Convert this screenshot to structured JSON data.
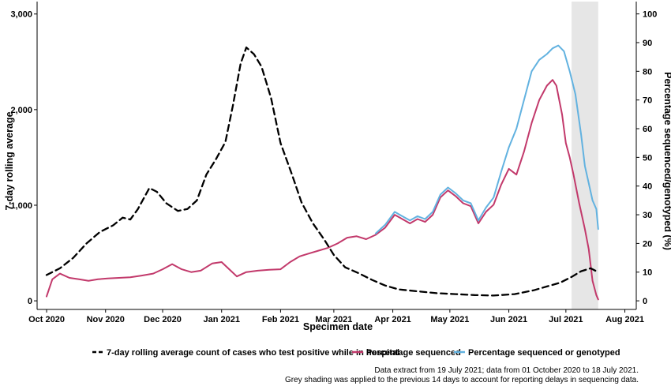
{
  "chart_data": {
    "type": "line",
    "xlabel": "Specimen date",
    "ylabel_left": "7-day rolling average",
    "ylabel_right": "Percentage sequenced/genotyped (%)",
    "x_ticks": [
      "Oct 2020",
      "Nov 2020",
      "Dec 2020",
      "Jan 2021",
      "Feb 2021",
      "Mar 2021",
      "Apr 2021",
      "May 2021",
      "Jun 2021",
      "Jul 2021",
      "Aug 2021"
    ],
    "x_tick_dates": [
      "2020-10-01",
      "2020-11-01",
      "2020-12-01",
      "2021-01-01",
      "2021-02-01",
      "2021-03-01",
      "2021-04-01",
      "2021-05-01",
      "2021-06-01",
      "2021-07-01",
      "2021-08-01"
    ],
    "xlim": [
      "2020-09-26",
      "2021-08-07"
    ],
    "y_left_ticks": [
      "0",
      "1,000",
      "2,000",
      "3,000"
    ],
    "y_left_tick_values": [
      0,
      1000,
      2000,
      3000
    ],
    "ylim_left": [
      -90,
      3130
    ],
    "y_right_ticks": [
      "0",
      "10",
      "20",
      "30",
      "40",
      "50",
      "60",
      "70",
      "80",
      "90",
      "100"
    ],
    "y_right_tick_values": [
      0,
      10,
      20,
      30,
      40,
      50,
      60,
      70,
      80,
      90,
      100
    ],
    "ylim_right": [
      -3,
      104.3
    ],
    "shaded_region": {
      "start": "2021-07-04",
      "end": "2021-07-18",
      "color": "#e6e6e6"
    },
    "grid": false,
    "legend_position": "bottom",
    "series": [
      {
        "name": "7-day rolling average count of cases who test positive while in hospital",
        "axis": "left",
        "color": "#000000",
        "style": "dashed",
        "points": [
          [
            "2020-10-01",
            270
          ],
          [
            "2020-10-08",
            340
          ],
          [
            "2020-10-15",
            450
          ],
          [
            "2020-10-22",
            600
          ],
          [
            "2020-10-29",
            720
          ],
          [
            "2020-11-05",
            790
          ],
          [
            "2020-11-10",
            870
          ],
          [
            "2020-11-14",
            850
          ],
          [
            "2020-11-18",
            960
          ],
          [
            "2020-11-24",
            1180
          ],
          [
            "2020-11-28",
            1140
          ],
          [
            "2020-12-03",
            1020
          ],
          [
            "2020-12-09",
            940
          ],
          [
            "2020-12-14",
            960
          ],
          [
            "2020-12-19",
            1050
          ],
          [
            "2020-12-24",
            1320
          ],
          [
            "2020-12-29",
            1480
          ],
          [
            "2021-01-03",
            1660
          ],
          [
            "2021-01-07",
            2050
          ],
          [
            "2021-01-11",
            2480
          ],
          [
            "2021-01-14",
            2650
          ],
          [
            "2021-01-18",
            2580
          ],
          [
            "2021-01-22",
            2450
          ],
          [
            "2021-01-27",
            2120
          ],
          [
            "2021-02-01",
            1650
          ],
          [
            "2021-02-07",
            1320
          ],
          [
            "2021-02-12",
            1030
          ],
          [
            "2021-02-18",
            810
          ],
          [
            "2021-02-24",
            640
          ],
          [
            "2021-03-01",
            480
          ],
          [
            "2021-03-07",
            350
          ],
          [
            "2021-03-14",
            290
          ],
          [
            "2021-03-21",
            220
          ],
          [
            "2021-03-28",
            160
          ],
          [
            "2021-04-04",
            120
          ],
          [
            "2021-04-14",
            100
          ],
          [
            "2021-04-24",
            80
          ],
          [
            "2021-05-04",
            70
          ],
          [
            "2021-05-14",
            60
          ],
          [
            "2021-05-24",
            55
          ],
          [
            "2021-06-04",
            70
          ],
          [
            "2021-06-14",
            110
          ],
          [
            "2021-06-21",
            150
          ],
          [
            "2021-06-28",
            190
          ],
          [
            "2021-07-04",
            250
          ],
          [
            "2021-07-09",
            310
          ],
          [
            "2021-07-14",
            340
          ],
          [
            "2021-07-18",
            300
          ]
        ]
      },
      {
        "name": "Percentage sequenced",
        "axis": "right",
        "color": "#c2396b",
        "style": "solid",
        "points": [
          [
            "2020-10-01",
            1.5
          ],
          [
            "2020-10-04",
            7.5
          ],
          [
            "2020-10-08",
            9.5
          ],
          [
            "2020-10-13",
            8.0
          ],
          [
            "2020-10-18",
            7.5
          ],
          [
            "2020-10-23",
            7.0
          ],
          [
            "2020-10-28",
            7.5
          ],
          [
            "2020-11-02",
            7.8
          ],
          [
            "2020-11-08",
            8.0
          ],
          [
            "2020-11-14",
            8.2
          ],
          [
            "2020-11-20",
            8.8
          ],
          [
            "2020-11-26",
            9.5
          ],
          [
            "2020-12-01",
            11.0
          ],
          [
            "2020-12-06",
            12.8
          ],
          [
            "2020-12-11",
            11.0
          ],
          [
            "2020-12-16",
            10.0
          ],
          [
            "2020-12-21",
            10.5
          ],
          [
            "2020-12-27",
            13.0
          ],
          [
            "2021-01-01",
            13.5
          ],
          [
            "2021-01-05",
            11.0
          ],
          [
            "2021-01-09",
            8.5
          ],
          [
            "2021-01-14",
            10.0
          ],
          [
            "2021-01-20",
            10.5
          ],
          [
            "2021-01-26",
            10.8
          ],
          [
            "2021-02-01",
            11.0
          ],
          [
            "2021-02-06",
            13.5
          ],
          [
            "2021-02-11",
            15.5
          ],
          [
            "2021-02-16",
            16.5
          ],
          [
            "2021-02-21",
            17.5
          ],
          [
            "2021-02-26",
            18.5
          ],
          [
            "2021-03-03",
            20.0
          ],
          [
            "2021-03-08",
            22.0
          ],
          [
            "2021-03-13",
            22.5
          ],
          [
            "2021-03-18",
            21.5
          ],
          [
            "2021-03-23",
            23.0
          ],
          [
            "2021-03-28",
            25.5
          ],
          [
            "2021-04-02",
            30.0
          ],
          [
            "2021-04-06",
            28.5
          ],
          [
            "2021-04-10",
            27.0
          ],
          [
            "2021-04-14",
            28.5
          ],
          [
            "2021-04-18",
            27.5
          ],
          [
            "2021-04-22",
            30.0
          ],
          [
            "2021-04-26",
            36.0
          ],
          [
            "2021-04-30",
            38.5
          ],
          [
            "2021-05-04",
            36.5
          ],
          [
            "2021-05-08",
            34.0
          ],
          [
            "2021-05-12",
            33.0
          ],
          [
            "2021-05-16",
            27.0
          ],
          [
            "2021-05-20",
            31.0
          ],
          [
            "2021-05-24",
            33.5
          ],
          [
            "2021-05-28",
            40.5
          ],
          [
            "2021-06-01",
            46.0
          ],
          [
            "2021-06-05",
            44.0
          ],
          [
            "2021-06-09",
            52.0
          ],
          [
            "2021-06-13",
            62.0
          ],
          [
            "2021-06-17",
            70.0
          ],
          [
            "2021-06-21",
            75.0
          ],
          [
            "2021-06-24",
            77.0
          ],
          [
            "2021-06-26",
            75.0
          ],
          [
            "2021-06-29",
            65.0
          ],
          [
            "2021-07-01",
            55.0
          ],
          [
            "2021-07-03",
            50.0
          ],
          [
            "2021-07-05",
            44.0
          ],
          [
            "2021-07-08",
            34.0
          ],
          [
            "2021-07-11",
            25.0
          ],
          [
            "2021-07-13",
            18.0
          ],
          [
            "2021-07-15",
            7.0
          ],
          [
            "2021-07-17",
            2.0
          ],
          [
            "2021-07-18",
            0.5
          ]
        ]
      },
      {
        "name": "Percentage sequenced or genotyped",
        "axis": "right",
        "color": "#62b2e0",
        "style": "solid",
        "points": [
          [
            "2021-03-23",
            23.5
          ],
          [
            "2021-03-28",
            26.5
          ],
          [
            "2021-04-02",
            31.0
          ],
          [
            "2021-04-06",
            29.5
          ],
          [
            "2021-04-10",
            28.0
          ],
          [
            "2021-04-14",
            29.5
          ],
          [
            "2021-04-18",
            28.5
          ],
          [
            "2021-04-22",
            31.0
          ],
          [
            "2021-04-26",
            37.0
          ],
          [
            "2021-04-30",
            39.5
          ],
          [
            "2021-05-04",
            37.5
          ],
          [
            "2021-05-08",
            35.0
          ],
          [
            "2021-05-12",
            34.0
          ],
          [
            "2021-05-16",
            28.0
          ],
          [
            "2021-05-20",
            32.5
          ],
          [
            "2021-05-24",
            36.0
          ],
          [
            "2021-05-28",
            45.0
          ],
          [
            "2021-06-01",
            53.5
          ],
          [
            "2021-06-05",
            60.0
          ],
          [
            "2021-06-09",
            70.0
          ],
          [
            "2021-06-13",
            80.0
          ],
          [
            "2021-06-17",
            84.0
          ],
          [
            "2021-06-21",
            86.0
          ],
          [
            "2021-06-24",
            88.0
          ],
          [
            "2021-06-27",
            89.0
          ],
          [
            "2021-06-30",
            87.0
          ],
          [
            "2021-07-03",
            80.0
          ],
          [
            "2021-07-06",
            72.0
          ],
          [
            "2021-07-09",
            58.0
          ],
          [
            "2021-07-11",
            47.0
          ],
          [
            "2021-07-13",
            41.0
          ],
          [
            "2021-07-15",
            35.0
          ],
          [
            "2021-07-17",
            32.0
          ],
          [
            "2021-07-18",
            25.0
          ]
        ]
      }
    ]
  },
  "legend": {
    "items": [
      {
        "label": "7-day rolling average count of cases who test positive while in hospital",
        "color": "#000000",
        "style": "dashed"
      },
      {
        "label": "Percentage sequenced",
        "color": "#c2396b",
        "style": "solid"
      },
      {
        "label": "Percentage sequenced or genotyped",
        "color": "#62b2e0",
        "style": "solid"
      }
    ]
  },
  "notes": {
    "line1": "Data extract from 19 July 2021; data from 01 October 2020 to 18 July 2021.",
    "line2": "Grey shading was applied to the previous 14 days to account for reporting delays in sequencing data."
  }
}
